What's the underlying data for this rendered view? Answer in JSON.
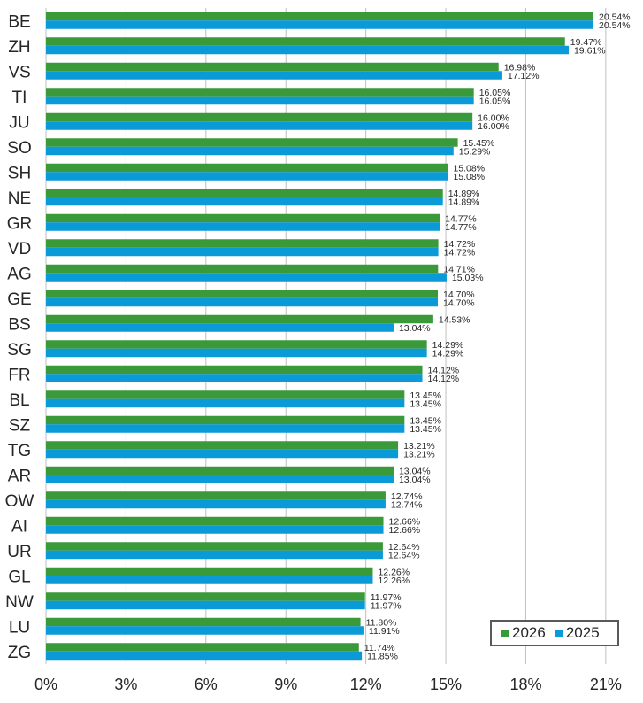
{
  "chart_data": {
    "type": "bar",
    "orientation": "horizontal",
    "categories": [
      "BE",
      "ZH",
      "VS",
      "TI",
      "JU",
      "SO",
      "SH",
      "NE",
      "GR",
      "VD",
      "AG",
      "GE",
      "BS",
      "SG",
      "FR",
      "BL",
      "SZ",
      "TG",
      "AR",
      "OW",
      "AI",
      "UR",
      "GL",
      "NW",
      "LU",
      "ZG"
    ],
    "series": [
      {
        "name": "2026",
        "color": "#3a9a3a",
        "values": [
          20.54,
          19.47,
          16.98,
          16.05,
          16.0,
          15.45,
          15.08,
          14.89,
          14.77,
          14.72,
          14.71,
          14.7,
          14.53,
          14.29,
          14.12,
          13.45,
          13.45,
          13.21,
          13.04,
          12.74,
          12.66,
          12.64,
          12.26,
          11.97,
          11.8,
          11.74
        ],
        "labels": [
          "20.54%",
          "19.47%",
          "16.98%",
          "16.05%",
          "16.00%",
          "15.45%",
          "15.08%",
          "14.89%",
          "14.77%",
          "14.72%",
          "14.71%",
          "14.70%",
          "14.53%",
          "14.29%",
          "14.12%",
          "13.45%",
          "13.45%",
          "13.21%",
          "13.04%",
          "12.74%",
          "12.66%",
          "12.64%",
          "12.26%",
          "11.97%",
          "11.80%",
          "11.74%"
        ]
      },
      {
        "name": "2025",
        "color": "#0b9ad8",
        "values": [
          20.54,
          19.61,
          17.12,
          16.05,
          16.0,
          15.29,
          15.08,
          14.89,
          14.77,
          14.72,
          15.03,
          14.7,
          13.04,
          14.29,
          14.12,
          13.45,
          13.45,
          13.21,
          13.04,
          12.74,
          12.66,
          12.64,
          12.26,
          11.97,
          11.91,
          11.85
        ],
        "labels": [
          "20.54%",
          "19.61%",
          "17.12%",
          "16.05%",
          "16.00%",
          "15.29%",
          "15.08%",
          "14.89%",
          "14.77%",
          "14.72%",
          "15.03%",
          "14.70%",
          "13.04%",
          "14.29%",
          "14.12%",
          "13.45%",
          "13.45%",
          "13.21%",
          "13.04%",
          "12.74%",
          "12.66%",
          "12.64%",
          "12.26%",
          "11.97%",
          "11.91%",
          "11.85%"
        ]
      }
    ],
    "xlim": [
      0,
      22
    ],
    "xticks": [
      0,
      3,
      6,
      9,
      12,
      15,
      18,
      21
    ],
    "xtick_labels": [
      "0%",
      "3%",
      "6%",
      "9%",
      "12%",
      "15%",
      "18%",
      "21%"
    ],
    "grid": true,
    "legend_position": "bottom-right"
  },
  "legend": {
    "item_2026": "2026",
    "item_2025": "2025"
  }
}
